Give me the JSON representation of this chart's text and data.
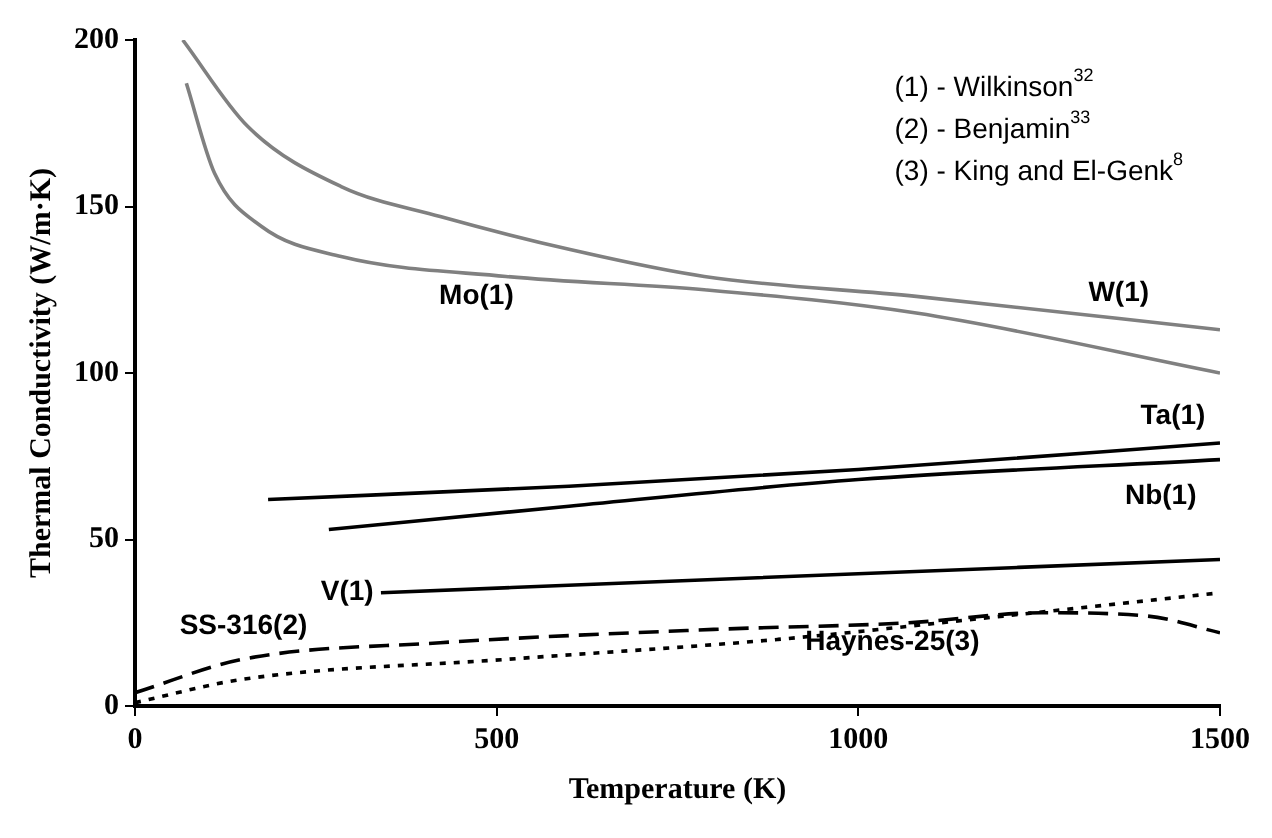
{
  "chart_data": {
    "type": "line",
    "xlabel": "Temperature (K)",
    "ylabel": "Thermal Conductivity (W/m·K)",
    "xlim": [
      0,
      1500
    ],
    "ylim": [
      0,
      200
    ],
    "xticks": [
      0,
      500,
      1000,
      1500
    ],
    "yticks": [
      0,
      50,
      100,
      150,
      200
    ],
    "grid": false,
    "legend": false,
    "marker": "none",
    "annotations": [
      "(1) - Wilkinson$^{32}$",
      "(2) - Benjamin$^{33}$",
      "(3) - King and El-Genk$^{8}$"
    ],
    "series": [
      {
        "name": "W(1)",
        "color": "#808080",
        "x": [
          66,
          156,
          285,
          422,
          603,
          787,
          1080,
          1500
        ],
        "values": [
          200,
          174,
          156,
          147,
          137,
          129,
          123,
          113
        ]
      },
      {
        "name": "Mo(1)",
        "color": "#808080",
        "x": [
          71,
          110,
          175,
          285,
          513,
          787,
          1080,
          1500
        ],
        "values": [
          187,
          160,
          144,
          135,
          129,
          125,
          118,
          100
        ]
      },
      {
        "name": "Ta(1)",
        "color": "#000000",
        "x": [
          184,
          600,
          1000,
          1500
        ],
        "values": [
          62,
          66,
          71,
          79
        ]
      },
      {
        "name": "Nb(1)",
        "color": "#000000",
        "x": [
          268,
          600,
          1000,
          1500
        ],
        "values": [
          53,
          60,
          68,
          74
        ]
      },
      {
        "name": "V(1)",
        "color": "#000000",
        "x": [
          340,
          800,
          1500
        ],
        "values": [
          34,
          38,
          44
        ]
      },
      {
        "name": "SS-316(2)",
        "color": "#000000",
        "line_style": "dashed",
        "x": [
          0,
          148,
          422,
          800,
          1070,
          1253,
          1400,
          1500
        ],
        "values": [
          4,
          14,
          19,
          23,
          25,
          28,
          27,
          22
        ]
      },
      {
        "name": "Haynes-25(3)",
        "color": "#000000",
        "line_style": "dotted",
        "x": [
          0,
          148,
          513,
          889,
          1200,
          1500
        ],
        "values": [
          1,
          8,
          14,
          20,
          27,
          34
        ]
      }
    ]
  }
}
